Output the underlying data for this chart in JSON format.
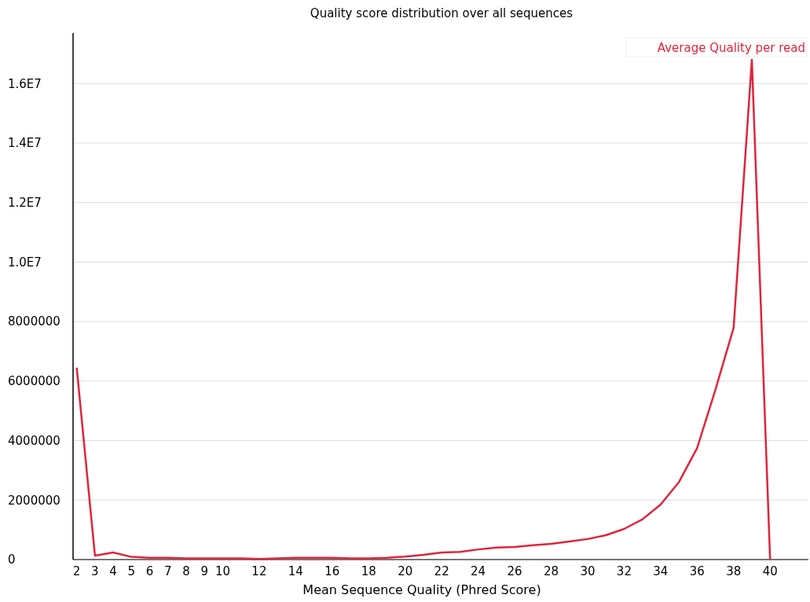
{
  "chart_data": {
    "type": "line",
    "title": "Quality score distribution over all sequences",
    "xlabel": "Mean Sequence Quality (Phred Score)",
    "x": [
      2,
      3,
      4,
      5,
      6,
      7,
      8,
      9,
      10,
      11,
      12,
      13,
      14,
      15,
      16,
      17,
      18,
      19,
      20,
      21,
      22,
      23,
      24,
      25,
      26,
      27,
      28,
      29,
      30,
      31,
      32,
      33,
      34,
      35,
      36,
      37,
      38,
      39,
      40
    ],
    "series": [
      {
        "name": "Average Quality per read",
        "color": "#e0243c",
        "values": [
          6450000,
          130000,
          240000,
          90000,
          60000,
          60000,
          40000,
          40000,
          40000,
          40000,
          20000,
          40000,
          60000,
          60000,
          60000,
          40000,
          40000,
          60000,
          100000,
          160000,
          240000,
          260000,
          340000,
          400000,
          420000,
          480000,
          530000,
          610000,
          690000,
          820000,
          1030000,
          1350000,
          1850000,
          2600000,
          3750000,
          5700000,
          7790000,
          16800000,
          0
        ]
      }
    ],
    "xlim": [
      1.8,
      42.1
    ],
    "xticks": [
      2,
      3,
      4,
      5,
      6,
      7,
      8,
      9,
      10,
      12,
      14,
      16,
      18,
      20,
      22,
      24,
      26,
      28,
      30,
      32,
      34,
      36,
      38,
      40
    ],
    "ylim": [
      0,
      17700000
    ],
    "yticks": [
      0,
      2000000,
      4000000,
      6000000,
      8000000,
      {
        "value": 10000000,
        "label": "1.0E7"
      },
      {
        "value": 12000000,
        "label": "1.2E7"
      },
      {
        "value": 14000000,
        "label": "1.4E7"
      },
      {
        "value": 16000000,
        "label": "1.6E7"
      }
    ],
    "grid": "y",
    "legend": "top right",
    "marker": "none",
    "line_style": "solid"
  }
}
